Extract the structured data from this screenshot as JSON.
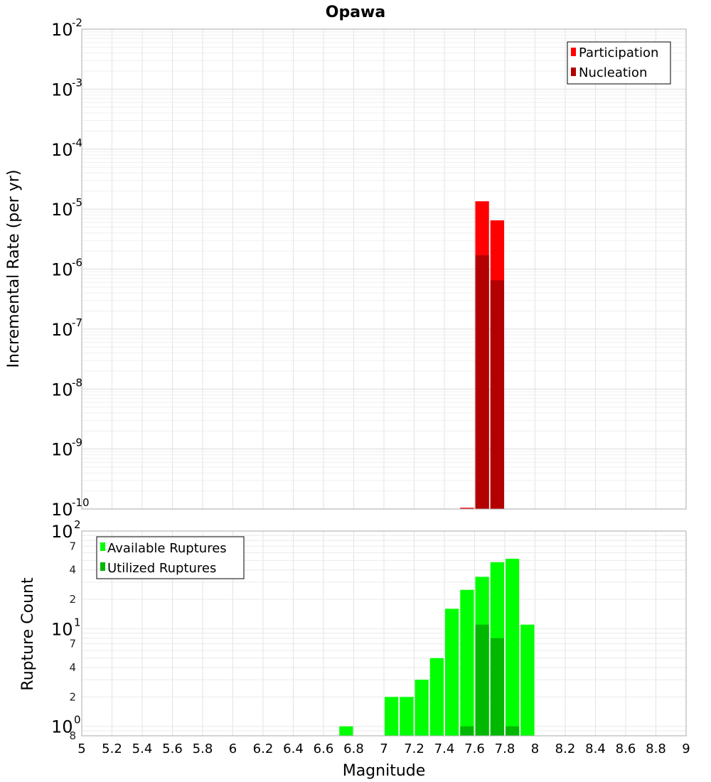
{
  "chart_data": [
    {
      "type": "bar",
      "title": "Opawa",
      "ylabel": "Incremental Rate (per yr)",
      "yscale": "log",
      "ylim": [
        1e-10,
        0.01
      ],
      "xlim": [
        5,
        9
      ],
      "bar_width": 0.1,
      "y_ticks": [
        {
          "base": "10",
          "exp": "-10"
        },
        {
          "base": "10",
          "exp": "-9"
        },
        {
          "base": "10",
          "exp": "-8"
        },
        {
          "base": "10",
          "exp": "-7"
        },
        {
          "base": "10",
          "exp": "-6"
        },
        {
          "base": "10",
          "exp": "-5"
        },
        {
          "base": "10",
          "exp": "-4"
        },
        {
          "base": "10",
          "exp": "-3"
        },
        {
          "base": "10",
          "exp": "-2"
        }
      ],
      "legend": {
        "position": "top-right"
      },
      "series": [
        {
          "name": "Participation",
          "color": "#ff0000",
          "x": [
            7.55,
            7.65,
            7.75
          ],
          "values": [
            1.05e-10,
            1.35e-05,
            6.5e-06
          ]
        },
        {
          "name": "Nucleation",
          "color": "#b30000",
          "x": [
            7.65,
            7.75
          ],
          "values": [
            1.7e-06,
            6.5e-07
          ]
        }
      ],
      "grid": true
    },
    {
      "type": "bar",
      "xlabel": "Magnitude",
      "ylabel": "Rupture Count",
      "yscale": "log",
      "ylim": [
        0.8,
        100
      ],
      "xlim": [
        5,
        9
      ],
      "bar_width": 0.1,
      "x_ticks": [
        "5",
        "5.2",
        "5.4",
        "5.6",
        "5.8",
        "6",
        "6.2",
        "6.4",
        "6.6",
        "6.8",
        "7",
        "7.2",
        "7.4",
        "7.6",
        "7.8",
        "8",
        "8.2",
        "8.4",
        "8.6",
        "8.8",
        "9"
      ],
      "y_major_ticks": [
        {
          "base": "10",
          "exp": "0",
          "value": 1
        },
        {
          "base": "10",
          "exp": "1",
          "value": 10
        },
        {
          "base": "10",
          "exp": "2",
          "value": 100
        }
      ],
      "y_minor_ticks": [
        {
          "label": "8",
          "value": 0.8
        },
        {
          "label": "2",
          "value": 2
        },
        {
          "label": "4",
          "value": 4
        },
        {
          "label": "7",
          "value": 7
        },
        {
          "label": "2",
          "value": 20
        },
        {
          "label": "4",
          "value": 40
        },
        {
          "label": "7",
          "value": 70
        }
      ],
      "legend": {
        "position": "top-left"
      },
      "series": [
        {
          "name": "Available Ruptures",
          "color": "#00ff00",
          "x": [
            6.75,
            7.05,
            7.15,
            7.25,
            7.35,
            7.45,
            7.55,
            7.65,
            7.75,
            7.85,
            7.95
          ],
          "values": [
            1,
            2,
            2,
            3,
            5,
            16,
            25,
            34,
            48,
            52,
            11
          ]
        },
        {
          "name": "Utilized Ruptures",
          "color": "#00b800",
          "x": [
            7.55,
            7.65,
            7.75,
            7.85
          ],
          "values": [
            1,
            11,
            8,
            1
          ]
        }
      ],
      "grid": true
    }
  ]
}
